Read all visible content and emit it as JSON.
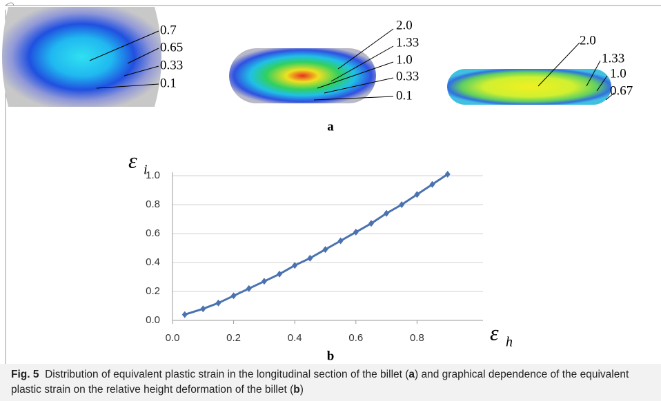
{
  "panel_a": {
    "label": "a",
    "shapes": [
      {
        "labels": [
          "0.7",
          "0.65",
          "0.33",
          "0.1"
        ]
      },
      {
        "labels": [
          "2.0",
          "1.33",
          "1.0",
          "0.33",
          "0.1"
        ]
      },
      {
        "labels": [
          "2.0",
          "1.33",
          "1.0",
          "0.67"
        ]
      }
    ]
  },
  "chart_data": {
    "type": "line",
    "panel_label": "b",
    "y_label": "ε",
    "y_label_sub": "i",
    "x_label": "ε",
    "x_label_sub": "h",
    "x": [
      0.04,
      0.1,
      0.15,
      0.2,
      0.25,
      0.3,
      0.35,
      0.4,
      0.45,
      0.5,
      0.55,
      0.6,
      0.65,
      0.7,
      0.75,
      0.8,
      0.85,
      0.9
    ],
    "series": [
      {
        "color": "#4a72b0",
        "values": [
          0.04,
          0.08,
          0.12,
          0.17,
          0.22,
          0.27,
          0.32,
          0.38,
          0.43,
          0.49,
          0.55,
          0.61,
          0.67,
          0.74,
          0.8,
          0.87,
          0.94,
          1.01
        ]
      }
    ],
    "xlim": [
      0,
      1
    ],
    "ylim": [
      0,
      1
    ],
    "xticks": [
      {
        "value": 0,
        "label": "0.0"
      },
      0.2,
      0.4,
      0.6,
      0.8
    ],
    "yticks": [
      {
        "value": 0,
        "label": "0.0"
      },
      0.2,
      0.4,
      0.6,
      0.8,
      {
        "value": 1,
        "label": "1.0"
      }
    ],
    "grid": true
  },
  "caption": {
    "label": "Fig. 5",
    "text_1": "Distribution of equivalent plastic strain in the longitudinal section of the billet (",
    "ref_a": "a",
    "text_2": ") and graphical dependence of the equivalent plastic strain on the relative height deformation of the billet (",
    "ref_b": "b",
    "text_3": ")"
  }
}
